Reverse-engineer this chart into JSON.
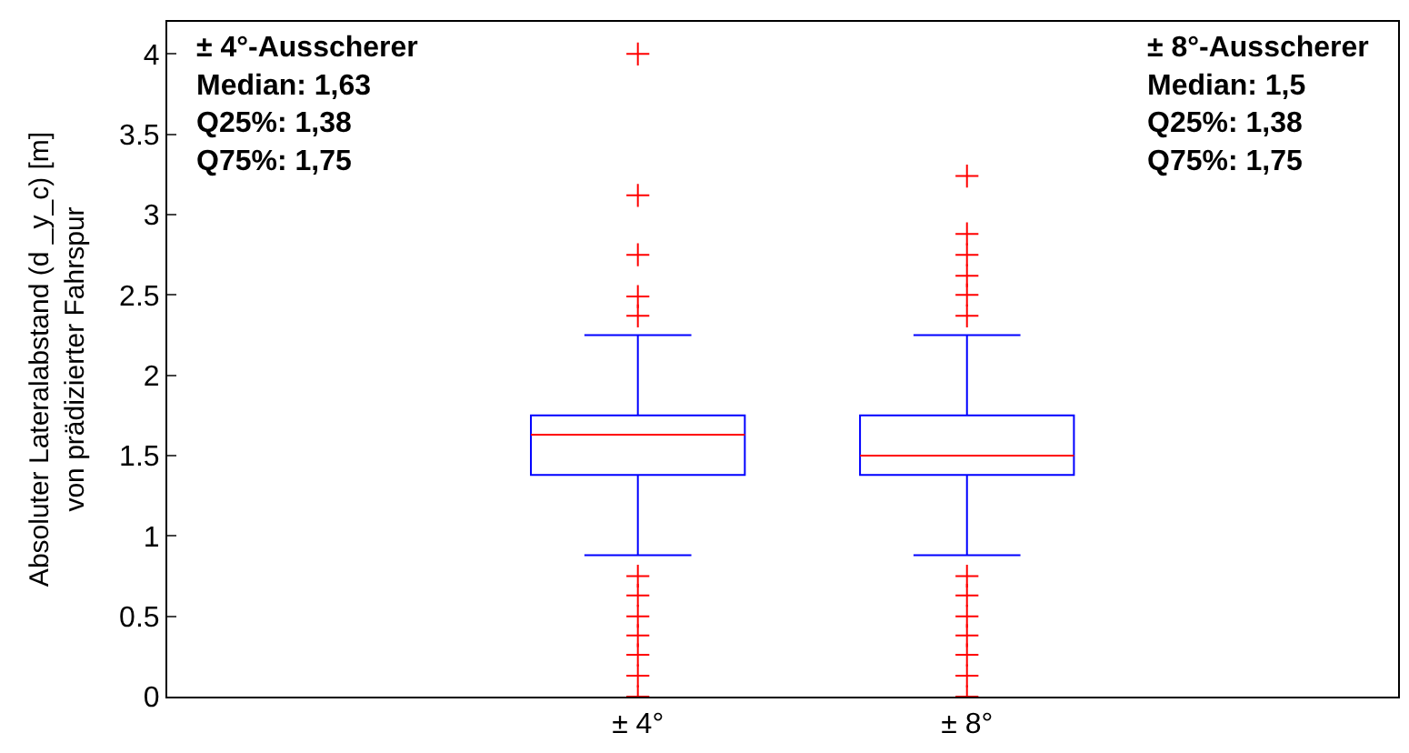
{
  "chart_data": {
    "type": "box",
    "ylabel": "Absoluter Lateralabstand (d _y_c) [m]\nvon prädizierter Fahrspur",
    "categories": [
      "± 4°",
      "± 8°"
    ],
    "boxes": [
      {
        "low": 0.88,
        "q1": 1.38,
        "median": 1.63,
        "q3": 1.75,
        "high": 2.25,
        "outliers": [
          4.0,
          3.12,
          2.75,
          2.49,
          2.37,
          0.75,
          0.63,
          0.5,
          0.38,
          0.26,
          0.13,
          0.0
        ]
      },
      {
        "low": 0.88,
        "q1": 1.38,
        "median": 1.5,
        "q3": 1.75,
        "high": 2.25,
        "outliers": [
          3.24,
          2.88,
          2.75,
          2.62,
          2.5,
          2.37,
          0.75,
          0.63,
          0.5,
          0.38,
          0.26,
          0.13,
          0.0
        ]
      }
    ],
    "color": "#0000ff",
    "marker": "cross",
    "ylim": [
      0,
      4.2
    ],
    "yticks": [
      0,
      0.5,
      1,
      1.5,
      2,
      2.5,
      3,
      3.5,
      4
    ],
    "annotations": [
      "± 4°-Ausscherer\nMedian: 1,63\nQ25%: 1,38\nQ75%: 1,75",
      "± 8°-Ausscherer\nMedian: 1,5\nQ25%: 1,38\nQ75%: 1,75"
    ]
  }
}
